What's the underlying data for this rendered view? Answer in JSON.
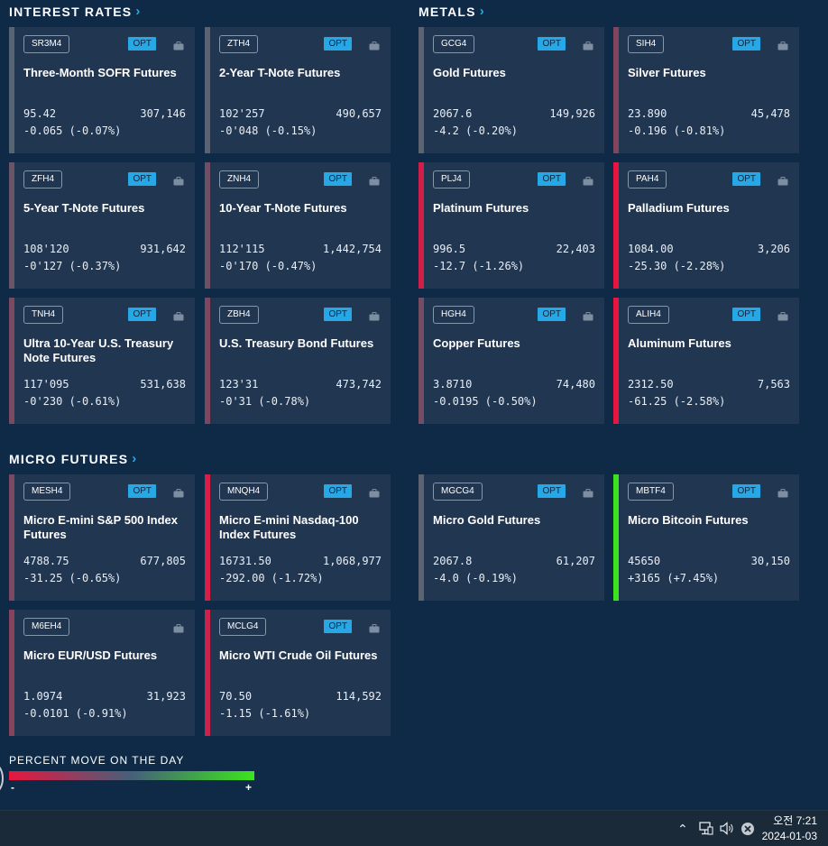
{
  "sections": {
    "interest_rates": "INTEREST RATES",
    "metals": "METALS",
    "micro_futures": "MICRO FUTURES"
  },
  "opt_label": "OPT",
  "icons": {
    "chevron": "chevron-right-icon",
    "portfolio": "briefcase-icon",
    "tray_up": "chevron-up-icon",
    "network": "network-icon",
    "volume": "speaker-icon",
    "close": "close-circle-icon"
  },
  "colors": {
    "background": "#0f2a47",
    "card": "#213651",
    "accent": "#27a8e6",
    "negative_strong": "#e8163f",
    "positive_strong": "#3be41c"
  },
  "cards": [
    {
      "symbol": "SR3M4",
      "opt": true,
      "name": "Three-Month SOFR Futures",
      "price": "95.42",
      "volume": "307,146",
      "change": "-0.065 (-0.07%)",
      "pct": -0.07,
      "bar_color": "#566473"
    },
    {
      "symbol": "ZTH4",
      "opt": true,
      "name": "2-Year T-Note Futures",
      "price": "102'257",
      "volume": "490,657",
      "change": "-0'048 (-0.15%)",
      "pct": -0.15,
      "bar_color": "#5b6272"
    },
    {
      "symbol": "GCG4",
      "opt": true,
      "name": "Gold Futures",
      "price": "2067.6",
      "volume": "149,926",
      "change": "-4.2 (-0.20%)",
      "pct": -0.2,
      "bar_color": "#5c6371"
    },
    {
      "symbol": "SIH4",
      "opt": true,
      "name": "Silver Futures",
      "price": "23.890",
      "volume": "45,478",
      "change": "-0.196 (-0.81%)",
      "pct": -0.81,
      "bar_color": "#83455e"
    },
    {
      "symbol": "ZFH4",
      "opt": true,
      "name": "5-Year T-Note Futures",
      "price": "108'120",
      "volume": "931,642",
      "change": "-0'127 (-0.37%)",
      "pct": -0.37,
      "bar_color": "#6a5468"
    },
    {
      "symbol": "ZNH4",
      "opt": true,
      "name": "10-Year T-Note Futures",
      "price": "112'115",
      "volume": "1,442,754",
      "change": "-0'170 (-0.47%)",
      "pct": -0.47,
      "bar_color": "#704f66"
    },
    {
      "symbol": "PLJ4",
      "opt": true,
      "name": "Platinum Futures",
      "price": "996.5",
      "volume": "22,403",
      "change": "-12.7 (-1.26%)",
      "pct": -1.26,
      "bar_color": "#d0204a"
    },
    {
      "symbol": "PAH4",
      "opt": true,
      "name": "Palladium Futures",
      "price": "1084.00",
      "volume": "3,206",
      "change": "-25.30 (-2.28%)",
      "pct": -2.28,
      "bar_color": "#e8163f"
    },
    {
      "symbol": "TNH4",
      "opt": true,
      "name": "Ultra 10-Year U.S. Treasury Note Futures",
      "price": "117'095",
      "volume": "531,638",
      "change": "-0'230 (-0.61%)",
      "pct": -0.61,
      "bar_color": "#7a4a63"
    },
    {
      "symbol": "ZBH4",
      "opt": true,
      "name": "U.S. Treasury Bond Futures",
      "price": "123'31",
      "volume": "473,742",
      "change": "-0'31 (-0.78%)",
      "pct": -0.78,
      "bar_color": "#81465f"
    },
    {
      "symbol": "HGH4",
      "opt": true,
      "name": "Copper Futures",
      "price": "3.8710",
      "volume": "74,480",
      "change": "-0.0195 (-0.50%)",
      "pct": -0.5,
      "bar_color": "#744d65"
    },
    {
      "symbol": "ALIH4",
      "opt": true,
      "name": "Aluminum Futures",
      "price": "2312.50",
      "volume": "7,563",
      "change": "-61.25 (-2.58%)",
      "pct": -2.58,
      "bar_color": "#e8163f"
    },
    {
      "symbol": "MESH4",
      "opt": true,
      "name": "Micro E-mini S&P 500 Index Futures",
      "price": "4788.75",
      "volume": "677,805",
      "change": "-31.25 (-0.65%)",
      "pct": -0.65,
      "bar_color": "#7b4962"
    },
    {
      "symbol": "MNQH4",
      "opt": true,
      "name": "Micro E-mini Nasdaq-100 Index Futures",
      "price": "16731.50",
      "volume": "1,068,977",
      "change": "-292.00 (-1.72%)",
      "pct": -1.72,
      "bar_color": "#d61e48"
    },
    {
      "symbol": "MGCG4",
      "opt": true,
      "name": "Micro Gold Futures",
      "price": "2067.8",
      "volume": "61,207",
      "change": "-4.0 (-0.19%)",
      "pct": -0.19,
      "bar_color": "#5c6371"
    },
    {
      "symbol": "MBTF4",
      "opt": true,
      "name": "Micro Bitcoin Futures",
      "price": "45650",
      "volume": "30,150",
      "change": "+3165 (+7.45%)",
      "pct": 7.45,
      "bar_color": "#3be41c"
    },
    {
      "symbol": "M6EH4",
      "opt": false,
      "name": "Micro EUR/USD Futures",
      "price": "1.0974",
      "volume": "31,923",
      "change": "-0.0101 (-0.91%)",
      "pct": -0.91,
      "bar_color": "#88435c"
    },
    {
      "symbol": "MCLG4",
      "opt": true,
      "name": "Micro WTI Crude Oil Futures",
      "price": "70.50",
      "volume": "114,592",
      "change": "-1.15 (-1.61%)",
      "pct": -1.61,
      "bar_color": "#c9234c"
    }
  ],
  "legend": {
    "title": "PERCENT MOVE ON THE DAY",
    "min_label": "-",
    "max_label": "+"
  },
  "taskbar": {
    "time": "오전 7:21",
    "date": "2024-01-03"
  }
}
